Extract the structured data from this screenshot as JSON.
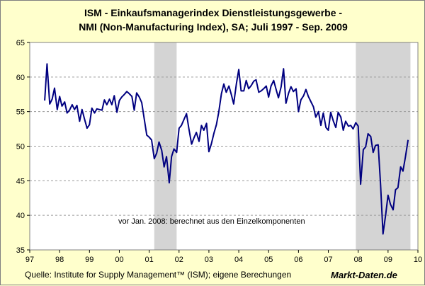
{
  "title_line1": "ISM - Einkaufsmanagerindex Dienstleistungsgewerbe -",
  "title_line2": "NMI (Non-Manufacturing Index), SA;  Juli 1997 - Sep. 2009",
  "source": "Quelle: Institute for Supply Management™ (ISM); eigene Berechungen",
  "brand": "Markt-Daten.de",
  "chart_data": {
    "type": "line",
    "title": "ISM - Einkaufsmanagerindex Dienstleistungsgewerbe - NMI (Non-Manufacturing Index), SA;  Juli 1997 - Sep. 2009",
    "annotation": "vor Jan. 2008: berechnet aus den Einzelkomponenten",
    "ylim": [
      35,
      65
    ],
    "yticks": [
      35,
      40,
      45,
      50,
      55,
      60,
      65
    ],
    "xlim": [
      1997.0,
      2010.0
    ],
    "xtick_labels": [
      "97",
      "98",
      "99",
      "00",
      "01",
      "02",
      "03",
      "04",
      "05",
      "06",
      "07",
      "08",
      "09",
      "10"
    ],
    "grid": "horizontal dashed",
    "line_color": "#000080",
    "recession_color": "#d4d4d4",
    "recessions": [
      [
        2001.17,
        2001.92
      ],
      [
        2007.92,
        2009.75
      ]
    ],
    "series": [
      {
        "x": [
          1997.5,
          1997.58,
          1997.67,
          1997.75,
          1997.83,
          1997.92,
          1998.0,
          1998.08,
          1998.17,
          1998.25,
          1998.33,
          1998.42,
          1998.5,
          1998.58,
          1998.67,
          1998.75,
          1998.83,
          1998.92,
          1999.0,
          1999.08,
          1999.17,
          1999.25,
          1999.33,
          1999.42,
          1999.5,
          1999.58,
          1999.67,
          1999.75,
          1999.83,
          1999.92,
          2000.0,
          2000.08,
          2000.17,
          2000.25,
          2000.33,
          2000.42,
          2000.5,
          2000.58,
          2000.67,
          2000.75,
          2000.83,
          2000.92,
          2001.0,
          2001.08,
          2001.17,
          2001.25,
          2001.33,
          2001.42,
          2001.5,
          2001.58,
          2001.67,
          2001.75,
          2001.83,
          2001.92,
          2002.0,
          2002.08,
          2002.17,
          2002.25,
          2002.33,
          2002.42,
          2002.5,
          2002.58,
          2002.67,
          2002.75,
          2002.83,
          2002.92,
          2003.0,
          2003.08,
          2003.17,
          2003.25,
          2003.33,
          2003.42,
          2003.5,
          2003.58,
          2003.67,
          2003.75,
          2003.83,
          2003.92,
          2004.0,
          2004.08,
          2004.17,
          2004.25,
          2004.33,
          2004.42,
          2004.5,
          2004.58,
          2004.67,
          2004.75,
          2004.83,
          2004.92,
          2005.0,
          2005.08,
          2005.17,
          2005.25,
          2005.33,
          2005.42,
          2005.5,
          2005.58,
          2005.67,
          2005.75,
          2005.83,
          2005.92,
          2006.0,
          2006.08,
          2006.17,
          2006.25,
          2006.33,
          2006.42,
          2006.5,
          2006.58,
          2006.67,
          2006.75,
          2006.83,
          2006.92,
          2007.0,
          2007.08,
          2007.17,
          2007.25,
          2007.33,
          2007.42,
          2007.5,
          2007.58,
          2007.67,
          2007.75,
          2007.83,
          2007.92,
          2008.0,
          2008.08,
          2008.17,
          2008.25,
          2008.33,
          2008.42,
          2008.5,
          2008.58,
          2008.67,
          2008.75,
          2008.83,
          2008.92,
          2009.0,
          2009.08,
          2009.17,
          2009.25,
          2009.33,
          2009.42,
          2009.5,
          2009.58,
          2009.67
        ],
        "values": [
          56.6,
          61.9,
          56.1,
          56.8,
          58.4,
          55.3,
          57.2,
          55.8,
          56.4,
          54.8,
          55.2,
          56.0,
          55.3,
          55.9,
          53.6,
          55.3,
          54.0,
          52.6,
          53.1,
          55.5,
          54.8,
          55.4,
          55.3,
          55.2,
          56.7,
          56.0,
          56.8,
          56.0,
          57.3,
          54.9,
          56.6,
          57.1,
          57.5,
          57.9,
          57.6,
          57.2,
          55.2,
          57.7,
          57.1,
          56.3,
          54.1,
          51.6,
          51.3,
          50.9,
          48.2,
          49.0,
          50.6,
          49.4,
          47.0,
          48.5,
          44.7,
          48.5,
          49.6,
          49.1,
          52.6,
          53.0,
          53.9,
          54.7,
          52.5,
          50.3,
          51.2,
          52.0,
          50.7,
          53.0,
          52.3,
          53.3,
          49.2,
          50.3,
          51.9,
          53.1,
          54.9,
          57.6,
          59.0,
          57.8,
          58.7,
          57.5,
          56.1,
          59.0,
          61.1,
          58.0,
          58.0,
          59.5,
          58.3,
          58.8,
          59.4,
          59.6,
          57.8,
          58.0,
          58.3,
          58.7,
          57.1,
          58.7,
          59.5,
          58.2,
          57.0,
          58.6,
          61.2,
          56.2,
          57.7,
          58.6,
          57.9,
          58.3,
          55.0,
          56.7,
          57.3,
          58.2,
          57.2,
          56.4,
          55.7,
          54.2,
          55.0,
          53.0,
          54.8,
          52.7,
          52.3,
          54.9,
          53.6,
          52.7,
          54.9,
          54.2,
          52.3,
          53.6,
          52.9,
          53.0,
          52.5,
          53.4,
          52.9,
          44.5,
          49.5,
          49.9,
          51.8,
          51.4,
          49.1,
          50.1,
          50.2,
          44.4,
          37.3,
          40.1,
          42.9,
          41.6,
          40.8,
          43.7,
          44.0,
          47.0,
          46.4,
          48.4,
          50.9
        ]
      }
    ]
  }
}
